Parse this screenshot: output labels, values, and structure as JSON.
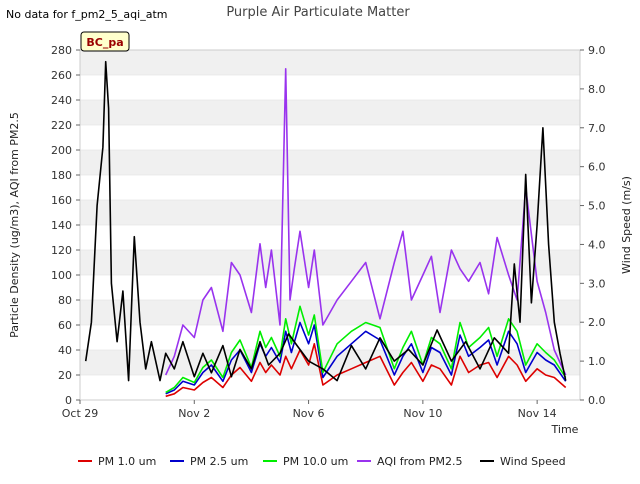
{
  "header": {
    "title": "Purple Air Particulate Matter",
    "no_data_note": "No data for f_pm2_5_aqi_atm",
    "site_badge": "BC_pa"
  },
  "chart_data": {
    "type": "line",
    "title": "Purple Air Particulate Matter",
    "xlabel": "Time",
    "ylabel": "Particle Density (ug/m3), AQI from PM2.5",
    "y2label": "Wind Speed (m/s)",
    "xlim": [
      0,
      16
    ],
    "ylim": [
      0,
      280
    ],
    "y2lim": [
      0,
      9
    ],
    "x_ticks": [
      {
        "x": 0,
        "label": "Oct 29"
      },
      {
        "x": 4,
        "label": "Nov 2"
      },
      {
        "x": 8,
        "label": "Nov 6"
      },
      {
        "x": 12,
        "label": "Nov 10"
      },
      {
        "x": 16,
        "label": "Nov 14"
      }
    ],
    "y_ticks": [
      0,
      20,
      40,
      60,
      80,
      100,
      120,
      140,
      160,
      180,
      200,
      220,
      240,
      260,
      280
    ],
    "y2_ticks": [
      "0.0",
      "1.0",
      "2.0",
      "3.0",
      "4.0",
      "5.0",
      "6.0",
      "7.0",
      "8.0",
      "9.0"
    ],
    "grid": "horizontal bands",
    "legend_position": "bottom",
    "series": [
      {
        "name": "PM 1.0 um",
        "color": "#dd0000",
        "axis": "left",
        "x": [
          3,
          3.3,
          3.6,
          4,
          4.3,
          4.6,
          5,
          5.3,
          5.6,
          6,
          6.3,
          6.5,
          6.7,
          7,
          7.2,
          7.4,
          7.7,
          8,
          8.2,
          8.5,
          9,
          9.5,
          10,
          10.5,
          11,
          11.3,
          11.6,
          12,
          12.3,
          12.6,
          13,
          13.3,
          13.6,
          14,
          14.3,
          14.6,
          15,
          15.3,
          15.6,
          16,
          16.3,
          16.6,
          17
        ],
        "y": [
          3,
          5,
          10,
          8,
          14,
          18,
          10,
          20,
          26,
          15,
          30,
          22,
          28,
          20,
          35,
          25,
          40,
          28,
          45,
          12,
          20,
          25,
          30,
          35,
          12,
          22,
          30,
          15,
          28,
          25,
          12,
          35,
          22,
          28,
          30,
          18,
          35,
          28,
          15,
          25,
          20,
          18,
          10
        ]
      },
      {
        "name": "PM 2.5 um",
        "color": "#0000cc",
        "axis": "left",
        "x": [
          3,
          3.3,
          3.6,
          4,
          4.3,
          4.6,
          5,
          5.3,
          5.6,
          6,
          6.3,
          6.5,
          6.7,
          7,
          7.2,
          7.4,
          7.7,
          8,
          8.2,
          8.5,
          9,
          9.5,
          10,
          10.5,
          11,
          11.3,
          11.6,
          12,
          12.3,
          12.6,
          13,
          13.3,
          13.6,
          14,
          14.3,
          14.6,
          15,
          15.3,
          15.6,
          16,
          16.3,
          16.6,
          17
        ],
        "y": [
          5,
          8,
          15,
          12,
          22,
          28,
          15,
          32,
          40,
          22,
          45,
          35,
          42,
          30,
          55,
          38,
          62,
          45,
          60,
          18,
          35,
          45,
          55,
          48,
          20,
          35,
          45,
          22,
          42,
          38,
          20,
          52,
          35,
          42,
          48,
          28,
          55,
          45,
          22,
          38,
          32,
          28,
          15
        ]
      },
      {
        "name": "PM 10.0 um",
        "color": "#00ee00",
        "axis": "left",
        "x": [
          3,
          3.3,
          3.6,
          4,
          4.3,
          4.6,
          5,
          5.3,
          5.6,
          6,
          6.3,
          6.5,
          6.7,
          7,
          7.2,
          7.4,
          7.7,
          8,
          8.2,
          8.5,
          9,
          9.5,
          10,
          10.5,
          11,
          11.3,
          11.6,
          12,
          12.3,
          12.6,
          13,
          13.3,
          13.6,
          14,
          14.3,
          14.6,
          15,
          15.3,
          15.6,
          16,
          16.3,
          16.6,
          17
        ],
        "y": [
          6,
          10,
          18,
          14,
          26,
          32,
          18,
          38,
          48,
          26,
          55,
          42,
          50,
          35,
          65,
          45,
          75,
          52,
          68,
          22,
          45,
          55,
          62,
          58,
          25,
          42,
          55,
          28,
          50,
          45,
          25,
          62,
          42,
          50,
          58,
          35,
          65,
          55,
          28,
          45,
          38,
          32,
          18
        ]
      },
      {
        "name": "AQI from PM2.5",
        "color": "#9933ee",
        "axis": "left",
        "x": [
          3,
          3.3,
          3.6,
          4,
          4.3,
          4.6,
          5,
          5.3,
          5.6,
          6,
          6.3,
          6.5,
          6.7,
          7,
          7.2,
          7.35,
          7.5,
          7.7,
          8,
          8.2,
          8.5,
          9,
          9.5,
          10,
          10.5,
          11,
          11.3,
          11.6,
          12,
          12.3,
          12.6,
          13,
          13.3,
          13.6,
          14,
          14.3,
          14.6,
          15,
          15.3,
          15.6,
          16,
          16.3,
          16.6,
          17
        ],
        "y": [
          20,
          35,
          60,
          50,
          80,
          90,
          55,
          110,
          100,
          70,
          125,
          90,
          120,
          60,
          265,
          80,
          105,
          135,
          90,
          120,
          60,
          80,
          95,
          110,
          65,
          110,
          135,
          80,
          100,
          115,
          70,
          120,
          105,
          95,
          110,
          85,
          130,
          100,
          80,
          170,
          95,
          70,
          40,
          20
        ]
      },
      {
        "name": "Wind Speed",
        "color": "#000000",
        "axis": "right",
        "x": [
          0.2,
          0.4,
          0.6,
          0.8,
          0.9,
          1.0,
          1.1,
          1.3,
          1.5,
          1.7,
          1.9,
          2.1,
          2.3,
          2.5,
          2.8,
          3.0,
          3.3,
          3.6,
          4.0,
          4.3,
          4.6,
          5.0,
          5.3,
          5.6,
          6.0,
          6.3,
          6.6,
          7.0,
          7.3,
          7.6,
          8.0,
          8.5,
          9.0,
          9.5,
          10.0,
          10.5,
          11.0,
          11.5,
          12.0,
          12.5,
          13.0,
          13.5,
          14.0,
          14.5,
          15.0,
          15.2,
          15.4,
          15.6,
          15.8,
          16.0,
          16.2,
          16.4,
          16.6,
          16.8,
          17.0
        ],
        "y": [
          1.0,
          2.0,
          5.0,
          6.5,
          8.7,
          7.5,
          3.0,
          1.5,
          2.8,
          0.5,
          4.2,
          2.0,
          0.8,
          1.5,
          0.5,
          1.2,
          0.8,
          1.5,
          0.6,
          1.2,
          0.7,
          1.4,
          0.6,
          1.3,
          0.8,
          1.5,
          0.9,
          1.2,
          1.7,
          1.4,
          1.0,
          0.8,
          0.5,
          1.4,
          0.8,
          1.6,
          1.0,
          1.3,
          0.9,
          1.8,
          1.0,
          1.5,
          0.8,
          1.6,
          1.2,
          3.5,
          2.0,
          5.8,
          2.5,
          4.5,
          7.0,
          4.0,
          2.0,
          1.2,
          0.5
        ]
      }
    ]
  }
}
